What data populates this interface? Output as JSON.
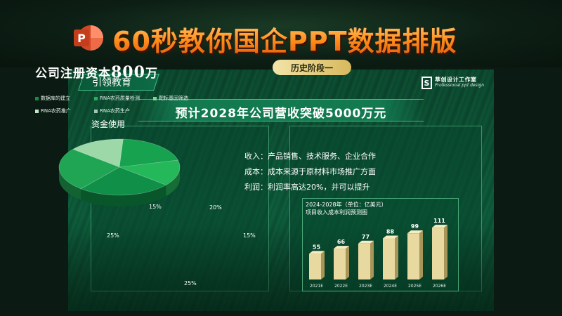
{
  "banner": {
    "title": "60秒教你国企PPT数据排版",
    "logo_icon": "powerpoint-icon",
    "logo_letter": "P"
  },
  "slide": {
    "tag": "引领教育",
    "brand": {
      "mark": "S",
      "cn": "萃创设计工作室",
      "en": "Professional ppt design"
    },
    "headline": "预计2028年公司营收突破5000万元",
    "left_panel": {
      "title_prefix": "公司注册资本",
      "title_amount": "800",
      "title_unit": "万",
      "legend": [
        {
          "label": "数据库的建立",
          "color": "#0f8f47"
        },
        {
          "label": "RNA农药质量检测",
          "color": "#24b256"
        },
        {
          "label": "靶标基因筛选",
          "color": "#7fd88f"
        },
        {
          "label": "RNA农药推广",
          "color": "#bfeac7"
        },
        {
          "label": "RNA农药生产",
          "color": "#9dc9aa"
        }
      ],
      "pie_title": "资金使用",
      "pie_labels": [
        "15%",
        "20%",
        "15%",
        "25%",
        "25%"
      ]
    },
    "right_panel": {
      "label": "历史阶段一",
      "lines": [
        "收入：产品销售、技术服务、企业合作",
        "成本：成本来源于原材料市场推广方面",
        "利润：利润率高达20%，并可以提升"
      ]
    }
  },
  "chart_data": [
    {
      "type": "pie",
      "title": "资金使用",
      "labels": [
        "数据库的建立",
        "RNA农药质量检测",
        "靶标基因筛选",
        "RNA农药推广",
        "RNA农药生产"
      ],
      "values": [
        15,
        20,
        15,
        25,
        25
      ],
      "value_labels": [
        "15%",
        "20%",
        "15%",
        "25%",
        "25%"
      ],
      "colors": [
        "#9dd9a8",
        "#16a24f",
        "#25b85a",
        "#0f8f47",
        "#1fa553"
      ]
    },
    {
      "type": "bar",
      "title": "2024-2028年（单位：亿美元）",
      "subtitle": "项目收入成本利润预测图",
      "categories": [
        "2021E",
        "2022E",
        "2023E",
        "2024E",
        "2025E",
        "2026E"
      ],
      "values": [
        55,
        66,
        77,
        88,
        99,
        111
      ],
      "ylim": [
        0,
        120
      ],
      "color": "#e8d9a0"
    }
  ]
}
